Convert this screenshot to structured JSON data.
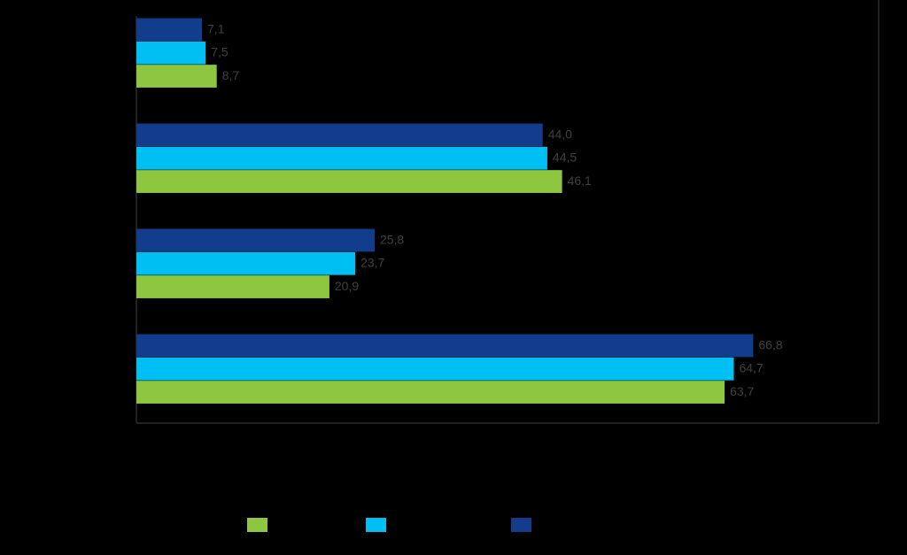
{
  "chart_data": {
    "type": "bar",
    "orientation": "horizontal",
    "categories": [
      null,
      null,
      null,
      null
    ],
    "xlim": [
      0,
      80
    ],
    "series": [
      {
        "color": "#8dc63f",
        "values": [
          8.7,
          46.1,
          20.9,
          63.7
        ],
        "value_labels": [
          "8,7",
          "46,1",
          "20,9",
          "63,7"
        ]
      },
      {
        "color": "#00bff3",
        "values": [
          7.5,
          44.5,
          23.7,
          64.7
        ],
        "value_labels": [
          "7,5",
          "44,5",
          "23,7",
          "64,7"
        ]
      },
      {
        "color": "#123c8c",
        "values": [
          7.1,
          44.0,
          25.8,
          66.8
        ],
        "value_labels": [
          "7,1",
          "44,0",
          "25,8",
          "66,8"
        ]
      }
    ]
  }
}
